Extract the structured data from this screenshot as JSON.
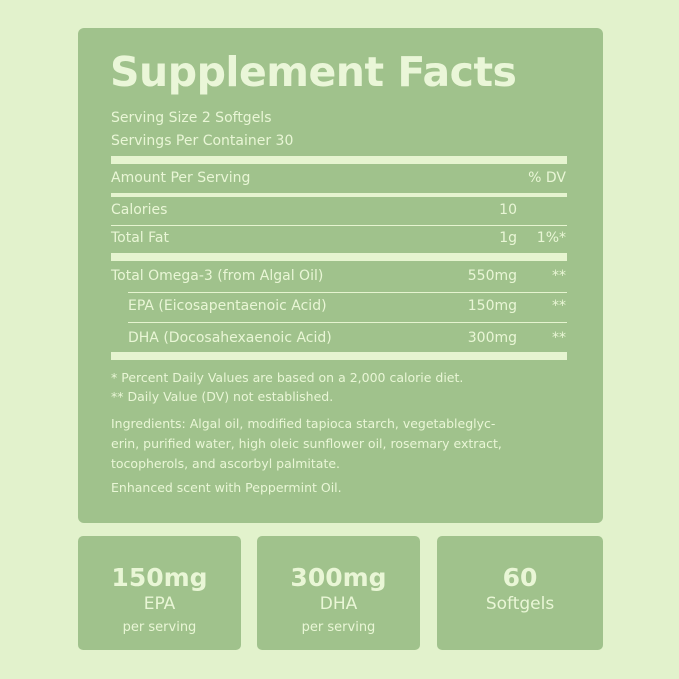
{
  "title": "Supplement Facts",
  "serving_size": "Serving Size 2 Softgels",
  "servings_per_container": "Servings Per Container 30",
  "header": {
    "amount": "Amount Per Serving",
    "dv": "% DV"
  },
  "rows": [
    {
      "name": "Calories",
      "amount": "10",
      "dv": ""
    },
    {
      "name": "Total Fat",
      "amount": "1g",
      "dv": "1%*"
    },
    {
      "name": "Total Omega-3 (from Algal Oil)",
      "amount": "550mg",
      "dv": "**"
    },
    {
      "name": "EPA (Eicosapentaenoic Acid)",
      "amount": "150mg",
      "dv": "**"
    },
    {
      "name": "DHA (Docosahexaenoic Acid)",
      "amount": "300mg",
      "dv": "**"
    }
  ],
  "footnotes": [
    "* Percent Daily Values are based on a 2,000 calorie diet.",
    "** Daily Value (DV) not established."
  ],
  "ingredients": [
    "Ingredients: Algal oil, modified tapioca starch, vegetableglyc-",
    "erin, purified water, high oleic sunflower oil, rosemary extract,",
    "tocopherols, and ascorbyl palmitate."
  ],
  "scent": "Enhanced scent with Peppermint Oil.",
  "badges": [
    {
      "value": "150mg",
      "label": "EPA",
      "sub": "per serving"
    },
    {
      "value": "300mg",
      "label": "DHA",
      "sub": "per serving"
    },
    {
      "value": "60",
      "label": "Softgels",
      "sub": ""
    }
  ],
  "colors": {
    "background": "#e2f2cc",
    "panel": "#a0c28c",
    "text": "#e9f6d6"
  }
}
